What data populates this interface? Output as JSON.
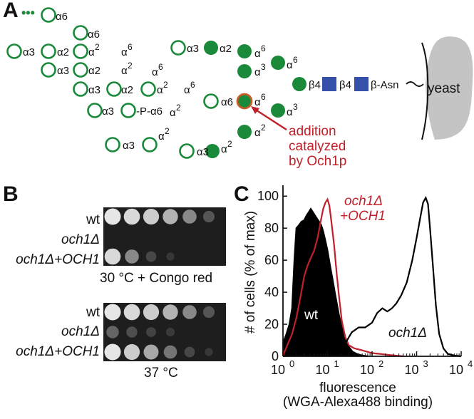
{
  "panels": {
    "a": "A",
    "b": "B",
    "c": "C"
  },
  "glycan": {
    "circle_color": "#1a8a3a",
    "och1_ring_color": "#cc5a2a",
    "mannose_labels": {
      "a6": "α6",
      "a2": "α2",
      "a3": "α3",
      "b4": "β4",
      "sup2": "2",
      "sup3": "3",
      "sup6": "6",
      "alpha": "α",
      "phospho": "-P-α6"
    },
    "asn_label": "β-Asn",
    "yeast_label": "yeast",
    "annotation": [
      "addition",
      "catalyzed",
      "by Och1p"
    ],
    "annotation_color": "#c0202a",
    "glcnac_color": "#3550a8"
  },
  "plates": {
    "strains": [
      "wt",
      "och1Δ",
      "och1Δ+OCH1"
    ],
    "condition_top": "30 °C + Congo red",
    "condition_bottom": "37 °C",
    "top_growth": [
      [
        1.0,
        0.95,
        0.9,
        0.8,
        0.6,
        0.3
      ],
      [
        0.0,
        0.0,
        0.0,
        0.0,
        0.0,
        0.0
      ],
      [
        0.95,
        0.6,
        0.2,
        0.05,
        0.0,
        0.0
      ]
    ],
    "bottom_growth": [
      [
        1.0,
        0.95,
        0.9,
        0.8,
        0.6,
        0.3
      ],
      [
        0.4,
        0.25,
        0.15,
        0.08,
        0.0,
        0.0
      ],
      [
        1.0,
        0.9,
        0.75,
        0.5,
        0.2,
        0.05
      ]
    ]
  },
  "chart_data": {
    "type": "area",
    "xlabel": [
      "fluorescence",
      "(WGA-Alexa488 binding)"
    ],
    "ylabel": "# of cells (% of max)",
    "x_scale": "log",
    "xlim": [
      1,
      10000
    ],
    "ylim": [
      0,
      105
    ],
    "x_ticks": [
      "10",
      "10",
      "10",
      "10",
      "10"
    ],
    "x_tick_exponents": [
      "0",
      "1",
      "2",
      "3",
      "4"
    ],
    "y_ticks": [
      "0",
      "20",
      "40",
      "60",
      "80",
      "100"
    ],
    "series": [
      {
        "name": "wt",
        "color": "#000000",
        "fill": true,
        "x": [
          1.0,
          1.2,
          1.4,
          1.6,
          1.8,
          2.0,
          2.3,
          2.6,
          3.0,
          3.4,
          3.8,
          4.2,
          4.7,
          5.2,
          5.8,
          6.5,
          7.2,
          8.0,
          9.0,
          10,
          11.5,
          13,
          15,
          18,
          21,
          25,
          30,
          36,
          45,
          60,
          80
        ],
        "y": [
          8,
          14,
          20,
          30,
          60,
          80,
          82,
          84,
          85,
          88,
          90,
          92,
          90,
          88,
          86,
          84,
          82,
          78,
          72,
          66,
          56,
          48,
          38,
          26,
          18,
          11,
          6,
          3,
          1.5,
          0.5,
          0
        ]
      },
      {
        "name": "och1Δ +OCH1",
        "color": "#c0202a",
        "fill": false,
        "x": [
          1.0,
          1.3,
          1.6,
          2.0,
          2.5,
          3.0,
          3.5,
          4.0,
          5.0,
          6.0,
          7.0,
          8.0,
          9.0,
          10,
          11,
          12,
          14,
          16,
          18,
          21,
          25,
          30,
          40,
          55,
          75,
          100,
          150,
          250,
          500
        ],
        "y": [
          0.5,
          8,
          14,
          24,
          38,
          50,
          56,
          60,
          66,
          74,
          84,
          92,
          96,
          98,
          94,
          86,
          70,
          52,
          38,
          22,
          12,
          7,
          5,
          4,
          3,
          2,
          1.5,
          0.8,
          0
        ]
      },
      {
        "name": "och1Δ",
        "color": "#000000",
        "fill": false,
        "x": [
          18,
          25,
          35,
          50,
          70,
          100,
          130,
          170,
          220,
          280,
          350,
          450,
          600,
          800,
          1000,
          1200,
          1400,
          1600,
          1800,
          2000,
          2300,
          2700,
          3200,
          4000,
          5000,
          7000,
          10000
        ],
        "y": [
          1,
          8,
          15,
          18,
          18,
          21,
          27,
          30,
          28,
          30,
          33,
          38,
          46,
          60,
          74,
          86,
          96,
          99,
          95,
          80,
          58,
          32,
          14,
          5,
          1.5,
          0.5,
          0
        ]
      }
    ],
    "legend_in_plot": [
      "och1Δ",
      "+OCH1",
      "wt",
      "och1Δ"
    ]
  }
}
